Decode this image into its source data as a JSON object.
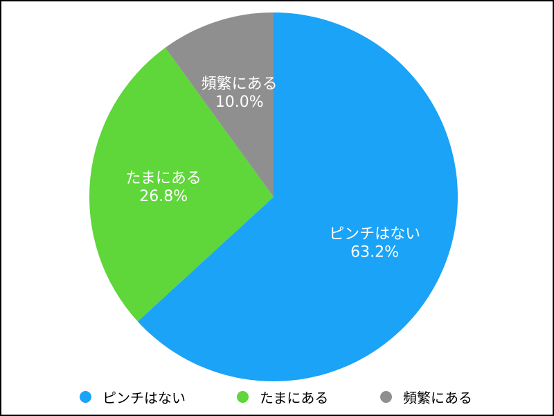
{
  "chart_data": {
    "type": "pie",
    "categories": [
      "ピンチはない",
      "たまにある",
      "頻繁にある"
    ],
    "values": [
      63.2,
      26.8,
      10.0
    ],
    "value_labels": [
      "63.2%",
      "26.8%",
      "10.0%"
    ],
    "colors": [
      "#1aa3f7",
      "#5fd63a",
      "#8f8f8f"
    ],
    "start_angle": "12 o'clock",
    "direction": "clockwise",
    "legend_position": "bottom"
  }
}
